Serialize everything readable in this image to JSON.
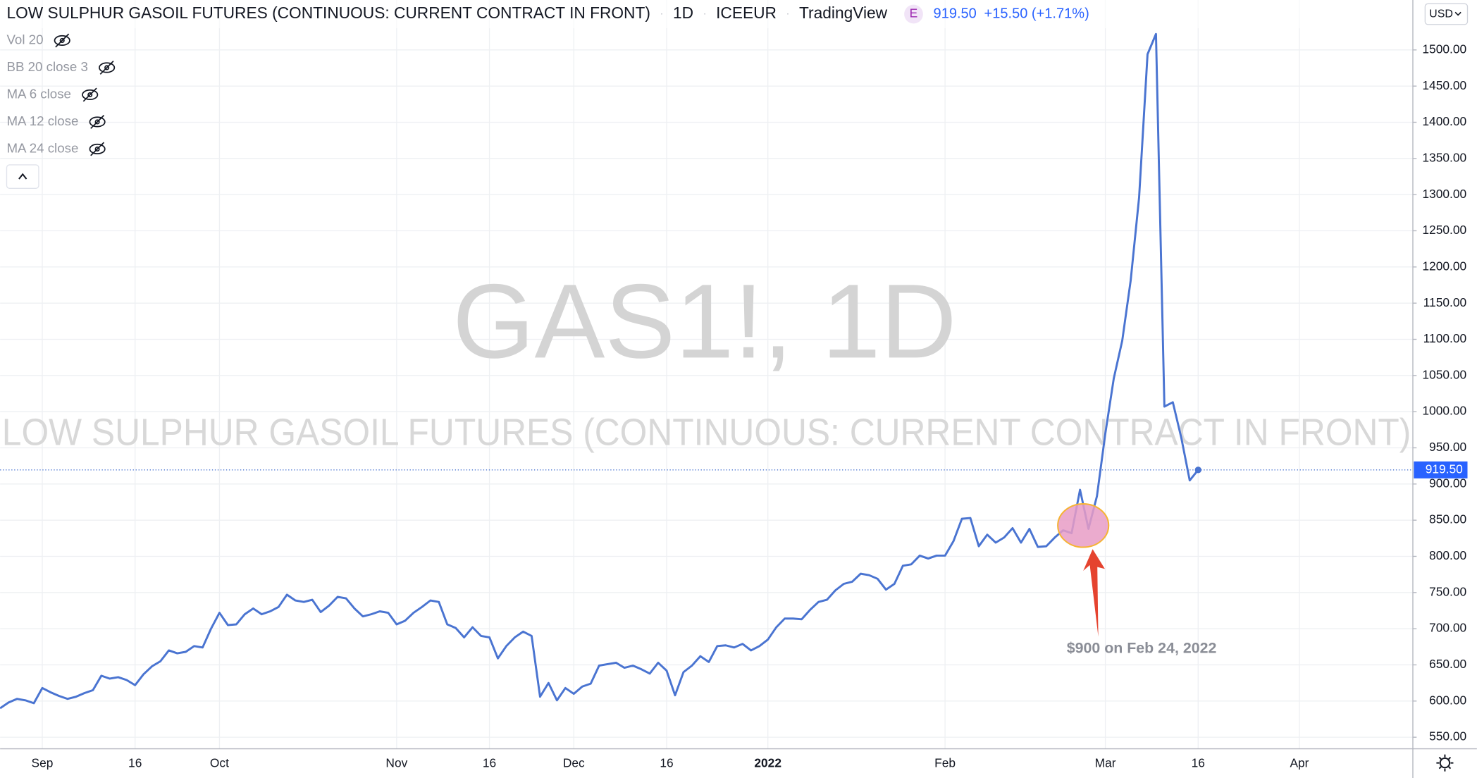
{
  "header": {
    "symbol_title": "LOW SULPHUR GASOIL FUTURES (CONTINUOUS: CURRENT CONTRACT IN FRONT)",
    "interval": "1D",
    "exchange": "ICEEUR",
    "source": "TradingView",
    "badge": "E",
    "price": "919.50",
    "change": "+15.50 (+1.71%)"
  },
  "indicators": [
    "Vol 20",
    "BB 20 close 3",
    "MA 6 close",
    "MA 12 close",
    "MA 24 close"
  ],
  "watermark": {
    "symbol": "GAS1!, 1D",
    "name": "LOW SULPHUR GASOIL FUTURES (CONTINUOUS: CURRENT CONTRACT IN FRONT)"
  },
  "currency": "USD",
  "chart_data": {
    "type": "line",
    "color": "#4a74d1",
    "grid": true,
    "annotation": "$900 on Feb 24, 2022",
    "last_price": {
      "value": 919.5,
      "label": "919.50"
    },
    "ylim": [
      534,
      1569
    ],
    "yticks": [
      {
        "value": 550,
        "label": "550.00"
      },
      {
        "value": 600,
        "label": "600.00"
      },
      {
        "value": 650,
        "label": "650.00"
      },
      {
        "value": 700,
        "label": "700.00"
      },
      {
        "value": 750,
        "label": "750.00"
      },
      {
        "value": 800,
        "label": "800.00"
      },
      {
        "value": 850,
        "label": "850.00"
      },
      {
        "value": 900,
        "label": "900.00"
      },
      {
        "value": 950,
        "label": "950.00"
      },
      {
        "value": 1000,
        "label": "1000.00"
      },
      {
        "value": 1050,
        "label": "1050.00"
      },
      {
        "value": 1100,
        "label": "1100.00"
      },
      {
        "value": 1150,
        "label": "1150.00"
      },
      {
        "value": 1200,
        "label": "1200.00"
      },
      {
        "value": 1250,
        "label": "1250.00"
      },
      {
        "value": 1300,
        "label": "1300.00"
      },
      {
        "value": 1350,
        "label": "1350.00"
      },
      {
        "value": 1400,
        "label": "1400.00"
      },
      {
        "value": 1450,
        "label": "1450.00"
      },
      {
        "value": 1500,
        "label": "1500.00"
      }
    ],
    "categories": [
      null,
      null,
      null,
      null,
      null,
      "Sep",
      null,
      null,
      null,
      null,
      null,
      null,
      null,
      null,
      null,
      null,
      "16",
      null,
      null,
      null,
      null,
      null,
      null,
      null,
      null,
      null,
      "Oct",
      null,
      null,
      null,
      null,
      null,
      null,
      null,
      null,
      null,
      null,
      null,
      null,
      null,
      null,
      null,
      null,
      null,
      null,
      null,
      null,
      "Nov",
      null,
      null,
      null,
      null,
      null,
      null,
      null,
      null,
      null,
      null,
      "16",
      null,
      null,
      null,
      null,
      null,
      null,
      null,
      null,
      null,
      "Dec",
      null,
      null,
      null,
      null,
      null,
      null,
      null,
      null,
      null,
      null,
      "16",
      null,
      null,
      null,
      null,
      null,
      null,
      null,
      null,
      null,
      null,
      null,
      "2022",
      null,
      null,
      null,
      null,
      null,
      null,
      null,
      null,
      null,
      null,
      null,
      null,
      null,
      null,
      null,
      null,
      null,
      null,
      null,
      null,
      "Feb",
      null,
      null,
      null,
      null,
      null,
      null,
      null,
      null,
      null,
      null,
      null,
      null,
      null,
      null,
      null,
      null,
      null,
      null,
      "Mar",
      null,
      null,
      null,
      null,
      null,
      null,
      null,
      null,
      null,
      null,
      "16",
      null,
      null,
      null,
      null,
      null,
      null,
      null,
      null,
      null,
      null,
      null,
      "Apr"
    ],
    "values": [
      590,
      598,
      603,
      601,
      597,
      618,
      612,
      607,
      603,
      606,
      611,
      615,
      635,
      631,
      633,
      629,
      622,
      637,
      648,
      655,
      670,
      666,
      668,
      676,
      674,
      700,
      722,
      705,
      706,
      720,
      728,
      720,
      724,
      730,
      747,
      739,
      737,
      740,
      723,
      732,
      744,
      742,
      728,
      717,
      720,
      724,
      722,
      706,
      711,
      722,
      730,
      739,
      737,
      706,
      701,
      688,
      702,
      690,
      688,
      659,
      676,
      688,
      696,
      690,
      606,
      625,
      601,
      618,
      610,
      620,
      624,
      649,
      651,
      653,
      646,
      649,
      644,
      638,
      653,
      642,
      608,
      640,
      649,
      662,
      654,
      676,
      677,
      674,
      679,
      670,
      676,
      685,
      702,
      714,
      714,
      713,
      726,
      737,
      740,
      753,
      762,
      765,
      776,
      774,
      769,
      754,
      762,
      787,
      789,
      801,
      797,
      801,
      801,
      821,
      852,
      853,
      814,
      830,
      819,
      826,
      839,
      819,
      838,
      813,
      814,
      826,
      836,
      832,
      892,
      838,
      883,
      970,
      1046,
      1098,
      1181,
      1296,
      1494,
      1522,
      1007,
      1013,
      964,
      905,
      919.5,
      null,
      null,
      null,
      null,
      null,
      null,
      null,
      null,
      null,
      null,
      null,
      null
    ]
  }
}
